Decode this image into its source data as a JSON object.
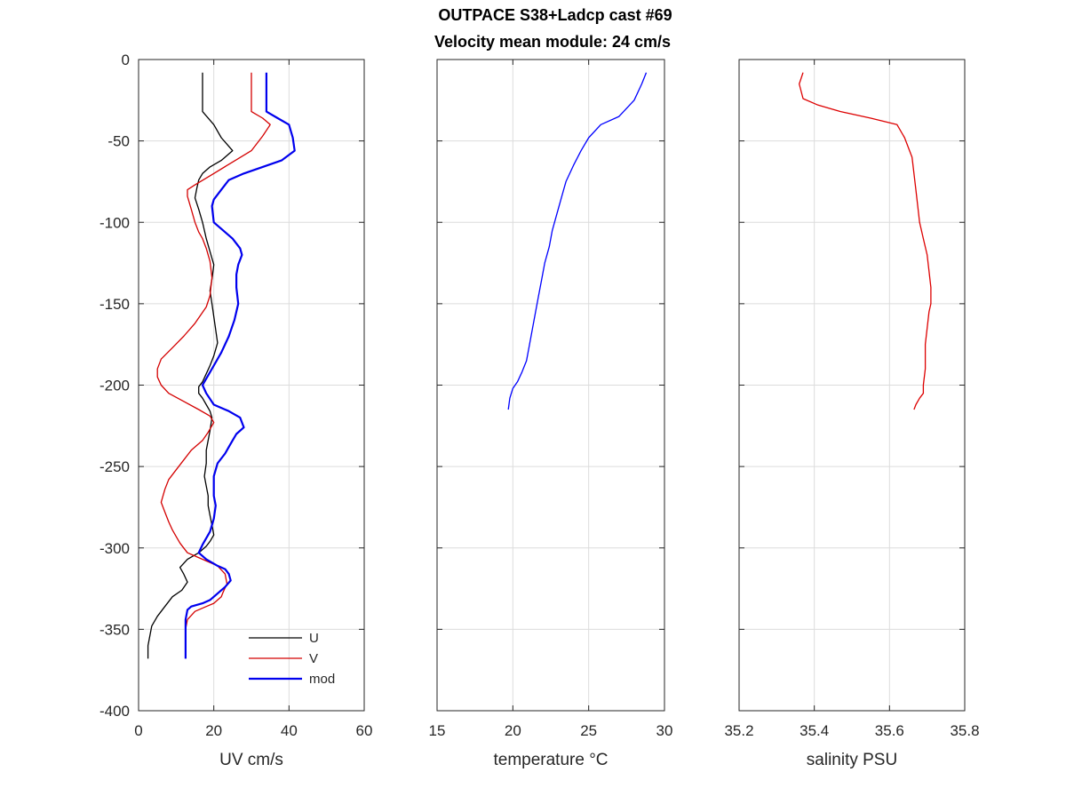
{
  "title_line1": "OUTPACE S38+Ladcp cast #69",
  "title_line2": "Velocity mean module:  24 cm/s",
  "chart_data": [
    {
      "type": "line",
      "xlabel": "UV cm/s",
      "ylabel": "",
      "xlim": [
        0,
        60
      ],
      "ylim": [
        -400,
        0
      ],
      "xticks": [
        "0",
        "20",
        "40",
        "60"
      ],
      "yticks": [
        "0",
        "-50",
        "-100",
        "-150",
        "-200",
        "-250",
        "-300",
        "-350",
        "-400"
      ],
      "grid": true,
      "legend_position": "bottom-right",
      "series": [
        {
          "name": "U",
          "color": "#000000",
          "x": [
            17,
            17,
            17,
            20,
            22,
            25,
            22,
            19,
            17,
            16,
            15.5,
            15,
            16,
            17,
            18,
            19,
            20,
            19.5,
            19,
            19.5,
            20,
            20.5,
            21,
            20,
            19,
            18,
            17,
            16,
            16,
            17,
            18,
            19,
            19.5,
            19,
            18.5,
            18,
            18,
            17.5,
            18,
            18.5,
            18.5,
            19,
            19.5,
            20,
            19,
            18,
            16,
            13,
            11,
            12,
            13,
            11.5,
            9,
            7,
            5,
            3.5,
            3,
            2.5,
            2.5,
            2.5
          ],
          "y": [
            -8,
            -20,
            -32,
            -40,
            -48,
            -56,
            -62,
            -66,
            -70,
            -74,
            -79,
            -85,
            -92,
            -100,
            -110,
            -118,
            -126,
            -135,
            -142,
            -150,
            -158,
            -166,
            -174,
            -182,
            -188,
            -193,
            -198,
            -201,
            -205,
            -208,
            -212,
            -216,
            -220,
            -228,
            -234,
            -240,
            -248,
            -256,
            -262,
            -268,
            -274,
            -280,
            -286,
            -292,
            -296,
            -299,
            -303,
            -307,
            -312,
            -316,
            -321,
            -326,
            -330,
            -336,
            -342,
            -348,
            -354,
            -360,
            -366,
            -368
          ]
        },
        {
          "name": "V",
          "color": "#d40000",
          "x": [
            30,
            30,
            30,
            33,
            35,
            33,
            30,
            25,
            20,
            15,
            13,
            13,
            14,
            15,
            16,
            17,
            18,
            19,
            19.5,
            19,
            18,
            15,
            12,
            9,
            6,
            5,
            5,
            6,
            8,
            12,
            16,
            19,
            20,
            18.5,
            17,
            14,
            12,
            10,
            8,
            7,
            6,
            7,
            8,
            9,
            10,
            11,
            12,
            13,
            15,
            18,
            21,
            23,
            23.5,
            22.5,
            22,
            21,
            20,
            18,
            15,
            13,
            12.5,
            12.5,
            12.5
          ],
          "y": [
            -8,
            -18,
            -32,
            -36,
            -40,
            -47,
            -56,
            -63,
            -70,
            -77,
            -80,
            -84,
            -92,
            -100,
            -106,
            -110,
            -116,
            -124,
            -134,
            -145,
            -152,
            -162,
            -170,
            -177,
            -184,
            -190,
            -195,
            -200,
            -205,
            -210,
            -215,
            -219,
            -223,
            -229,
            -234,
            -240,
            -246,
            -252,
            -258,
            -264,
            -272,
            -278,
            -284,
            -289,
            -293,
            -297,
            -300,
            -303,
            -305,
            -308,
            -311,
            -316,
            -322,
            -327,
            -330,
            -332,
            -334,
            -336,
            -339,
            -344,
            -350,
            -360,
            -368
          ]
        },
        {
          "name": "mod",
          "color": "#0000ee",
          "x": [
            34,
            34,
            34,
            37,
            40,
            41,
            41.5,
            38,
            33,
            28,
            24,
            22,
            20,
            19.5,
            20,
            22,
            25,
            27,
            27.5,
            26.5,
            26,
            26,
            26.5,
            25.5,
            24,
            22,
            20,
            18,
            17,
            18,
            20,
            24,
            27,
            28,
            26,
            25,
            24,
            23,
            21,
            20,
            20,
            20,
            20.5,
            20,
            19,
            17,
            16,
            18,
            21,
            23,
            24,
            24.5,
            23,
            21,
            19,
            17,
            14,
            13,
            12.5,
            12.5,
            12.5,
            12.5
          ],
          "y": [
            -8,
            -20,
            -32,
            -36,
            -40,
            -48,
            -56,
            -62,
            -66,
            -70,
            -74,
            -80,
            -86,
            -90,
            -100,
            -104,
            -110,
            -116,
            -120,
            -126,
            -132,
            -140,
            -150,
            -160,
            -170,
            -180,
            -188,
            -196,
            -200,
            -205,
            -212,
            -216,
            -220,
            -226,
            -230,
            -234,
            -238,
            -242,
            -248,
            -256,
            -262,
            -268,
            -274,
            -282,
            -290,
            -298,
            -303,
            -307,
            -311,
            -313,
            -316,
            -320,
            -324,
            -328,
            -332,
            -334,
            -336,
            -338,
            -344,
            -352,
            -360,
            -368
          ]
        }
      ]
    },
    {
      "type": "line",
      "xlabel": "temperature °C",
      "ylabel": "",
      "xlim": [
        15,
        30
      ],
      "ylim": [
        -400,
        0
      ],
      "xticks": [
        "15",
        "20",
        "25",
        "30"
      ],
      "grid": true,
      "series": [
        {
          "color": "#0000ff",
          "x": [
            28.8,
            28.5,
            28.0,
            27.0,
            25.8,
            25.0,
            24.5,
            24.0,
            23.5,
            23.2,
            22.9,
            22.6,
            22.4,
            22.1,
            21.9,
            21.7,
            21.5,
            21.3,
            21.1,
            20.9,
            20.6,
            20.3,
            20.0,
            19.8,
            19.7
          ],
          "y": [
            -8,
            -15,
            -25,
            -35,
            -40,
            -48,
            -56,
            -65,
            -75,
            -85,
            -95,
            -105,
            -115,
            -125,
            -135,
            -145,
            -155,
            -165,
            -175,
            -185,
            -192,
            -198,
            -202,
            -208,
            -215
          ]
        }
      ]
    },
    {
      "type": "line",
      "xlabel": "salinity PSU",
      "ylabel": "",
      "xlim": [
        35.2,
        35.8
      ],
      "ylim": [
        -400,
        0
      ],
      "xticks": [
        "35.2",
        "35.4",
        "35.6",
        "35.8"
      ],
      "grid": true,
      "series": [
        {
          "color": "#dd0000",
          "x": [
            35.37,
            35.36,
            35.37,
            35.41,
            35.47,
            35.55,
            35.62,
            35.64,
            35.66,
            35.67,
            35.68,
            35.69,
            35.7,
            35.705,
            35.71,
            35.71,
            35.705,
            35.7,
            35.695,
            35.695,
            35.69,
            35.69,
            35.68,
            35.67,
            35.665
          ],
          "y": [
            -8,
            -15,
            -24,
            -28,
            -32,
            -36,
            -40,
            -48,
            -60,
            -80,
            -100,
            -110,
            -120,
            -130,
            -140,
            -150,
            -155,
            -165,
            -175,
            -190,
            -200,
            -205,
            -208,
            -212,
            -215
          ]
        }
      ]
    }
  ]
}
